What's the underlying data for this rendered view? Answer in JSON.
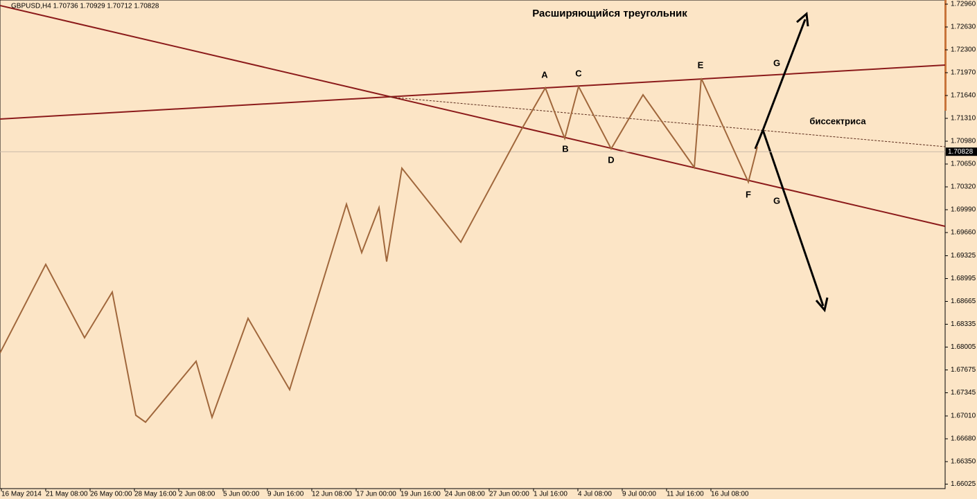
{
  "chart_data": {
    "type": "line",
    "header": "GBPUSD,H4  1.70736 1.70929 1.70712 1.70828",
    "title": "Расширяющийся треугольник",
    "annotations": [
      "A",
      "B",
      "C",
      "D",
      "E",
      "F",
      "G",
      "G",
      "биссектриса"
    ],
    "xlim": [
      0,
      682
    ],
    "xticks": [
      {
        "value": 1,
        "label": "16 May 2014"
      },
      {
        "value": 33,
        "label": "21 May 08:00"
      },
      {
        "value": 65,
        "label": "26 May 00:00"
      },
      {
        "value": 97,
        "label": "28 May 16:00"
      },
      {
        "value": 129,
        "label": "2 Jun 08:00"
      },
      {
        "value": 161,
        "label": "5 Jun 00:00"
      },
      {
        "value": 193,
        "label": "9 Jun 16:00"
      },
      {
        "value": 225,
        "label": "12 Jun 08:00"
      },
      {
        "value": 257,
        "label": "17 Jun 00:00"
      },
      {
        "value": 289,
        "label": "19 Jun 16:00"
      },
      {
        "value": 321,
        "label": "24 Jun 08:00"
      },
      {
        "value": 353,
        "label": "27 Jun 00:00"
      },
      {
        "value": 385,
        "label": "1 Jul 16:00"
      },
      {
        "value": 417,
        "label": "4 Jul 08:00"
      },
      {
        "value": 449,
        "label": "9 Jul 00:00"
      },
      {
        "value": 481,
        "label": "11 Jul 16:00"
      },
      {
        "value": 513,
        "label": "16 Jul 08:00"
      }
    ],
    "ylim": [
      1.6596,
      1.7302
    ],
    "yticks": [
      {
        "value": 1.7296,
        "label": "1.72960"
      },
      {
        "value": 1.7263,
        "label": "1.72630"
      },
      {
        "value": 1.723,
        "label": "1.72300"
      },
      {
        "value": 1.7197,
        "label": "1.71970"
      },
      {
        "value": 1.7164,
        "label": "1.71640"
      },
      {
        "value": 1.7131,
        "label": "1.71310"
      },
      {
        "value": 1.7098,
        "label": "1.70980"
      },
      {
        "value": 1.7065,
        "label": "1.70650"
      },
      {
        "value": 1.7032,
        "label": "1.70320"
      },
      {
        "value": 1.6999,
        "label": "1.69990"
      },
      {
        "value": 1.6966,
        "label": "1.69660"
      },
      {
        "value": 1.69325,
        "label": "1.69325"
      },
      {
        "value": 1.68995,
        "label": "1.68995"
      },
      {
        "value": 1.68665,
        "label": "1.68665"
      },
      {
        "value": 1.68335,
        "label": "1.68335"
      },
      {
        "value": 1.68005,
        "label": "1.68005"
      },
      {
        "value": 1.67675,
        "label": "1.67675"
      },
      {
        "value": 1.67345,
        "label": "1.67345"
      },
      {
        "value": 1.6701,
        "label": "1.67010"
      },
      {
        "value": 1.6668,
        "label": "1.66680"
      },
      {
        "value": 1.6635,
        "label": "1.66350"
      },
      {
        "value": 1.66025,
        "label": "1.66025"
      }
    ],
    "last_price": {
      "value": 1.70828,
      "label": "1.70828"
    },
    "series": [
      {
        "color": "#a0673c",
        "x": [
          0,
          33,
          61,
          81,
          98,
          105,
          141.5,
          153,
          179,
          209,
          250,
          261,
          273.5,
          279,
          290,
          332.5,
          376,
          393.5,
          407.5,
          417.5,
          441,
          464,
          501,
          506,
          540,
          546.5
        ],
        "values": [
          1.6792,
          1.692,
          1.6814,
          1.688,
          1.6702,
          1.6692,
          1.678,
          1.6699,
          1.6842,
          1.6739,
          1.7007,
          1.6937,
          1.7002,
          1.6924,
          1.7059,
          1.6952,
          1.7114,
          1.7175,
          1.7102,
          1.7177,
          1.7087,
          1.7165,
          1.706,
          1.7189,
          1.7039,
          1.709
        ]
      }
    ]
  }
}
